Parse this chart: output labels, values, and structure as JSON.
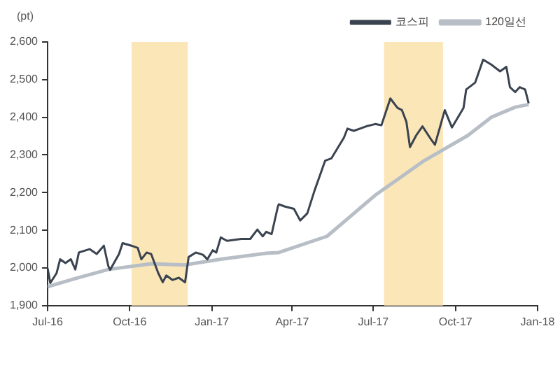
{
  "chart_data": {
    "type": "line",
    "ylabel": "(pt)",
    "xlim": [
      "2016-07-01",
      "2018-01-01"
    ],
    "xticks": [
      {
        "value": "2016-07-01",
        "label": "Jul-16"
      },
      {
        "value": "2016-10-01",
        "label": "Oct-16"
      },
      {
        "value": "2017-01-01",
        "label": "Jan-17"
      },
      {
        "value": "2017-04-01",
        "label": "Apr-17"
      },
      {
        "value": "2017-07-01",
        "label": "Jul-17"
      },
      {
        "value": "2017-10-01",
        "label": "Oct-17"
      },
      {
        "value": "2018-01-01",
        "label": "Jan-18"
      }
    ],
    "ylim": [
      1900,
      2600
    ],
    "yticks": [
      {
        "value": 1900,
        "label": "1,900"
      },
      {
        "value": 2000,
        "label": "2,000"
      },
      {
        "value": 2100,
        "label": "2,100"
      },
      {
        "value": 2200,
        "label": "2,200"
      },
      {
        "value": 2300,
        "label": "2,300"
      },
      {
        "value": 2400,
        "label": "2,400"
      },
      {
        "value": 2500,
        "label": "2,500"
      },
      {
        "value": 2600,
        "label": "2,600"
      }
    ],
    "grid": false,
    "legend": "top right",
    "series": [
      {
        "name": "코스피",
        "color": "#3a4350",
        "x": [
          "2016-07-01",
          "2016-07-04",
          "2016-07-11",
          "2016-07-15",
          "2016-07-21",
          "2016-07-27",
          "2016-08-01",
          "2016-08-05",
          "2016-08-17",
          "2016-08-25",
          "2016-09-02",
          "2016-09-07",
          "2016-09-09",
          "2016-09-19",
          "2016-09-23",
          "2016-10-03",
          "2016-10-10",
          "2016-10-14",
          "2016-10-20",
          "2016-10-25",
          "2016-11-02",
          "2016-11-07",
          "2016-11-11",
          "2016-11-18",
          "2016-11-25",
          "2016-12-02",
          "2016-12-06",
          "2016-12-14",
          "2016-12-22",
          "2016-12-27",
          "2017-01-02",
          "2017-01-06",
          "2017-01-11",
          "2017-01-18",
          "2017-02-03",
          "2017-02-13",
          "2017-02-21",
          "2017-02-27",
          "2017-03-03",
          "2017-03-09",
          "2017-03-16",
          "2017-03-17",
          "2017-03-24",
          "2017-04-03",
          "2017-04-10",
          "2017-04-18",
          "2017-04-26",
          "2017-05-08",
          "2017-05-15",
          "2017-05-29",
          "2017-06-02",
          "2017-06-09",
          "2017-06-23",
          "2017-07-03",
          "2017-07-10",
          "2017-07-20",
          "2017-07-28",
          "2017-08-02",
          "2017-08-07",
          "2017-08-11",
          "2017-08-18",
          "2017-08-25",
          "2017-09-04",
          "2017-09-08",
          "2017-09-19",
          "2017-09-27",
          "2017-10-10",
          "2017-10-13",
          "2017-10-23",
          "2017-11-01",
          "2017-11-10",
          "2017-11-20",
          "2017-11-27",
          "2017-12-01",
          "2017-12-07",
          "2017-12-12",
          "2017-12-18",
          "2017-12-22"
        ],
        "values": [
          1999,
          1960,
          1986,
          2023,
          2013,
          2023,
          1996,
          2041,
          2050,
          2037,
          2059,
          2005,
          1995,
          2037,
          2066,
          2059,
          2053,
          2023,
          2041,
          2037,
          1986,
          1962,
          1980,
          1968,
          1974,
          1962,
          2029,
          2041,
          2035,
          2023,
          2047,
          2041,
          2081,
          2072,
          2077,
          2077,
          2102,
          2084,
          2096,
          2090,
          2163,
          2169,
          2163,
          2157,
          2126,
          2145,
          2205,
          2285,
          2291,
          2346,
          2370,
          2364,
          2376,
          2382,
          2379,
          2450,
          2425,
          2419,
          2388,
          2321,
          2352,
          2376,
          2340,
          2327,
          2419,
          2373,
          2425,
          2474,
          2492,
          2553,
          2540,
          2522,
          2534,
          2480,
          2467,
          2480,
          2474,
          2437
        ]
      },
      {
        "name": "120일선",
        "color": "#b8bec6",
        "x": [
          "2016-07-01",
          "2016-08-01",
          "2016-09-07",
          "2016-10-25",
          "2016-12-01",
          "2017-01-11",
          "2017-03-03",
          "2017-03-17",
          "2017-05-10",
          "2017-07-03",
          "2017-08-27",
          "2017-10-15",
          "2017-11-10",
          "2017-12-07",
          "2017-12-22"
        ],
        "values": [
          1950,
          1972,
          1996,
          2011,
          2008,
          2023,
          2039,
          2041,
          2084,
          2193,
          2285,
          2352,
          2400,
          2427,
          2434
        ]
      }
    ],
    "bands": [
      {
        "axis": "x",
        "from": "2016-10-03",
        "to": "2016-12-05",
        "color": "#fbe6b8"
      },
      {
        "axis": "x",
        "from": "2017-07-13",
        "to": "2017-09-17",
        "color": "#fbe6b8"
      }
    ]
  }
}
